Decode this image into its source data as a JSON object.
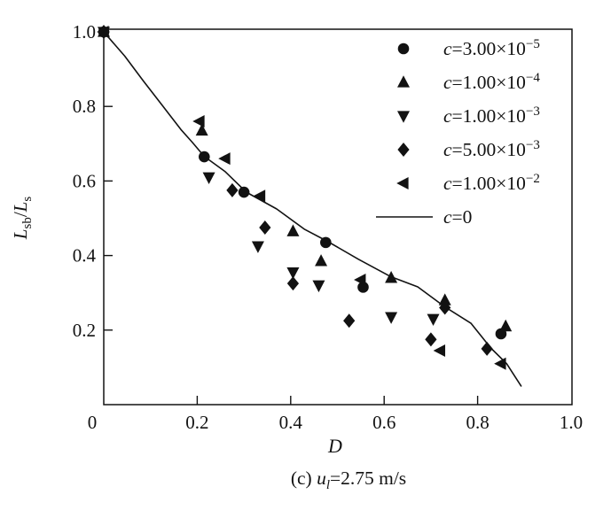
{
  "page": {
    "background": "#ffffff",
    "ink": "#121212"
  },
  "chart_data": {
    "type": "scatter",
    "title": "",
    "xlabel": "D",
    "ylabel": "Lsb/Ls",
    "ylabel_parts": {
      "sym1": "L",
      "sub1": "sb",
      "sep": "/",
      "sym2": "L",
      "sub2": "s"
    },
    "caption": "(c) ul=2.75 m/s",
    "caption_parts": {
      "prefix": "(c) ",
      "var": "u",
      "sub": "l",
      "rest": "=2.75 m/s"
    },
    "xlim": [
      0,
      1.0
    ],
    "ylim": [
      0,
      1.0
    ],
    "grid": false,
    "legend_position": "inside-top-right",
    "x_ticks": [
      {
        "v": 0,
        "label": "0"
      },
      {
        "v": 0.2,
        "label": "0.2"
      },
      {
        "v": 0.4,
        "label": "0.4"
      },
      {
        "v": 0.6,
        "label": "0.6"
      },
      {
        "v": 0.8,
        "label": "0.8"
      },
      {
        "v": 1.0,
        "label": "1.0"
      }
    ],
    "y_ticks": [
      {
        "v": 0.2,
        "label": "0.2"
      },
      {
        "v": 0.4,
        "label": "0.4"
      },
      {
        "v": 0.6,
        "label": "0.6"
      },
      {
        "v": 0.8,
        "label": "0.8"
      },
      {
        "v": 1.0,
        "label": "1.0"
      }
    ],
    "legend": [
      {
        "marker": "circle",
        "var": "c",
        "value": "=3.00×10",
        "exp": "−5",
        "label": "c=3.00×10−5"
      },
      {
        "marker": "triangle-up",
        "var": "c",
        "value": "=1.00×10",
        "exp": "−4",
        "label": "c=1.00×10−4"
      },
      {
        "marker": "triangle-down",
        "var": "c",
        "value": "=1.00×10",
        "exp": "−3",
        "label": "c=1.00×10−3"
      },
      {
        "marker": "diamond",
        "var": "c",
        "value": "=5.00×10",
        "exp": "−3",
        "label": "c=5.00×10−3"
      },
      {
        "marker": "triangle-left",
        "var": "c",
        "value": "=1.00×10",
        "exp": "−2",
        "label": "c=1.00×10−2"
      },
      {
        "marker": "line",
        "var": "c",
        "value": "=0",
        "exp": "",
        "label": "c=0"
      }
    ],
    "series": [
      {
        "name": "c=3.00×10−5",
        "marker": "circle",
        "points": [
          [
            0,
            1.0
          ],
          [
            0.215,
            0.665
          ],
          [
            0.3,
            0.57
          ],
          [
            0.475,
            0.435
          ],
          [
            0.555,
            0.315
          ],
          [
            0.85,
            0.19
          ]
        ]
      },
      {
        "name": "c=1.00×10−4",
        "marker": "triangle-up",
        "points": [
          [
            0,
            1.0
          ],
          [
            0.21,
            0.735
          ],
          [
            0.405,
            0.465
          ],
          [
            0.465,
            0.385
          ],
          [
            0.615,
            0.34
          ],
          [
            0.73,
            0.28
          ],
          [
            0.86,
            0.21
          ]
        ]
      },
      {
        "name": "c=1.00×10−3",
        "marker": "triangle-down",
        "points": [
          [
            0,
            1.0
          ],
          [
            0.225,
            0.61
          ],
          [
            0.33,
            0.425
          ],
          [
            0.405,
            0.355
          ],
          [
            0.46,
            0.32
          ],
          [
            0.615,
            0.235
          ],
          [
            0.705,
            0.23
          ]
        ]
      },
      {
        "name": "c=5.00×10−3",
        "marker": "diamond",
        "points": [
          [
            0,
            1.0
          ],
          [
            0.275,
            0.575
          ],
          [
            0.345,
            0.475
          ],
          [
            0.405,
            0.325
          ],
          [
            0.525,
            0.225
          ],
          [
            0.7,
            0.175
          ],
          [
            0.73,
            0.26
          ],
          [
            0.82,
            0.15
          ]
        ]
      },
      {
        "name": "c=1.00×10−2",
        "marker": "triangle-left",
        "points": [
          [
            0,
            1.0
          ],
          [
            0.205,
            0.76
          ],
          [
            0.26,
            0.66
          ],
          [
            0.335,
            0.56
          ],
          [
            0.55,
            0.335
          ],
          [
            0.72,
            0.145
          ],
          [
            0.85,
            0.11
          ]
        ]
      },
      {
        "name": "c=0",
        "marker": "line",
        "points": [
          [
            0,
            1.0
          ],
          [
            0.045,
            0.935
          ],
          [
            0.085,
            0.868
          ],
          [
            0.125,
            0.803
          ],
          [
            0.165,
            0.738
          ],
          [
            0.19,
            0.703
          ],
          [
            0.215,
            0.666
          ],
          [
            0.26,
            0.625
          ],
          [
            0.305,
            0.57
          ],
          [
            0.37,
            0.525
          ],
          [
            0.43,
            0.47
          ],
          [
            0.48,
            0.437
          ],
          [
            0.545,
            0.39
          ],
          [
            0.613,
            0.344
          ],
          [
            0.672,
            0.316
          ],
          [
            0.728,
            0.264
          ],
          [
            0.786,
            0.218
          ],
          [
            0.828,
            0.152
          ],
          [
            0.862,
            0.11
          ],
          [
            0.893,
            0.05
          ]
        ]
      }
    ]
  }
}
